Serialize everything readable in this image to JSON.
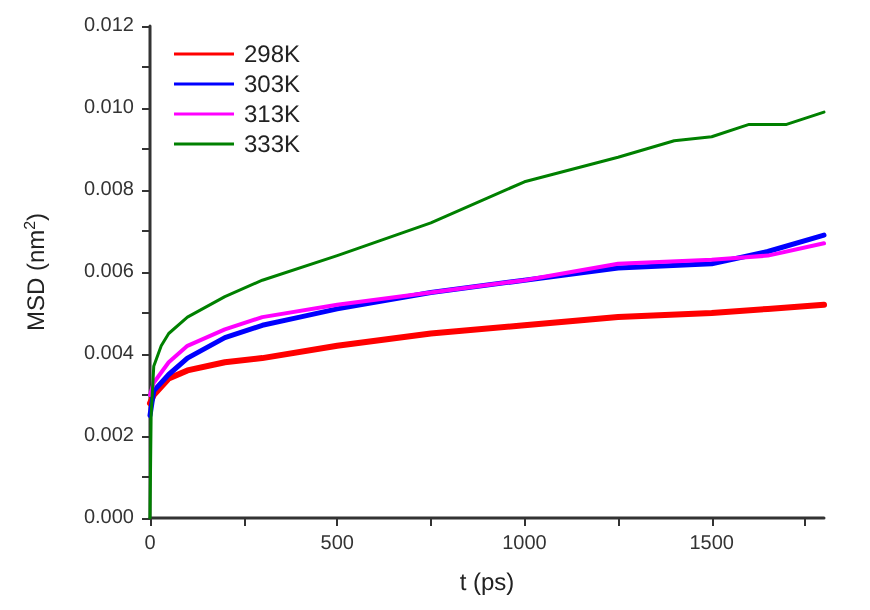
{
  "chart_data": {
    "type": "line",
    "xlabel": "t (ps)",
    "ylabel": "MSD (nm$^{2}$)",
    "xlim": [
      0,
      1800
    ],
    "xticks": [
      0,
      {
        "value": 250,
        "label": null
      },
      500,
      {
        "value": 750,
        "label": null
      },
      1000,
      {
        "value": 1250,
        "label": null
      },
      1500,
      {
        "value": 1750,
        "label": null
      }
    ],
    "ylim": [
      0,
      0.012
    ],
    "yticks": [
      {
        "value": 0,
        "label": "0.000"
      },
      {
        "value": 0.001,
        "label": null
      },
      {
        "value": 0.002,
        "label": "0.002"
      },
      {
        "value": 0.003,
        "label": null
      },
      {
        "value": 0.004,
        "label": "0.004"
      },
      {
        "value": 0.005,
        "label": null
      },
      {
        "value": 0.006,
        "label": "0.006"
      },
      {
        "value": 0.007,
        "label": null
      },
      {
        "value": 0.008,
        "label": "0.008"
      },
      {
        "value": 0.009,
        "label": null
      },
      {
        "value": 0.01,
        "label": "0.010"
      },
      {
        "value": 0.011,
        "label": null
      },
      {
        "value": 0.012,
        "label": "0.012"
      }
    ],
    "grid": false,
    "legend": "top left",
    "marker": "none",
    "line_style": "solid",
    "series": [
      {
        "name": "298K",
        "color": "#ff0000",
        "x": [
          0,
          10,
          50,
          100,
          200,
          300,
          500,
          750,
          1000,
          1250,
          1500,
          1650,
          1800
        ],
        "values": [
          0.0028,
          0.003,
          0.0034,
          0.0036,
          0.0038,
          0.0039,
          0.0042,
          0.0045,
          0.0047,
          0.0049,
          0.005,
          0.0051,
          0.0052
        ]
      },
      {
        "name": "303K",
        "color": "#0000ff",
        "x": [
          0,
          10,
          50,
          100,
          200,
          300,
          400,
          500,
          750,
          1000,
          1250,
          1500,
          1650,
          1800
        ],
        "values": [
          0.0025,
          0.0031,
          0.0035,
          0.0039,
          0.0044,
          0.0047,
          0.0049,
          0.0051,
          0.0055,
          0.0058,
          0.0061,
          0.0062,
          0.0065,
          0.0069
        ]
      },
      {
        "name": "313K",
        "color": "#ff00ff",
        "x": [
          0,
          10,
          50,
          100,
          200,
          300,
          500,
          750,
          1000,
          1250,
          1500,
          1650,
          1800
        ],
        "values": [
          0.003,
          0.0033,
          0.0038,
          0.0042,
          0.0046,
          0.0049,
          0.0052,
          0.0055,
          0.0058,
          0.0062,
          0.0063,
          0.0064,
          0.0067
        ]
      },
      {
        "name": "333K",
        "color": "#008000",
        "x": [
          0,
          3,
          10,
          30,
          50,
          100,
          200,
          300,
          500,
          750,
          1000,
          1250,
          1400,
          1500,
          1600,
          1700,
          1800
        ],
        "values": [
          0,
          0.0025,
          0.0037,
          0.0042,
          0.0045,
          0.0049,
          0.0054,
          0.0058,
          0.0064,
          0.0072,
          0.0082,
          0.0088,
          0.0092,
          0.0093,
          0.0096,
          0.0096,
          0.0099
        ]
      }
    ]
  }
}
